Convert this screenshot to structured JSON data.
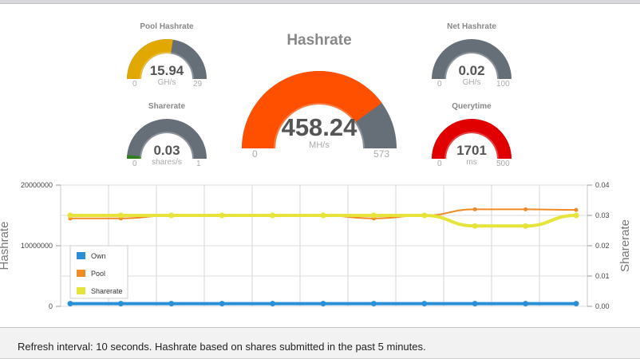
{
  "gauges": {
    "pool_hashrate": {
      "title": "Pool Hashrate",
      "value": "15.94",
      "unit": "GH/s",
      "min": "0",
      "max": "29",
      "fraction": 0.55,
      "color": "#e0a800"
    },
    "sharerate": {
      "title": "Sharerate",
      "value": "0.03",
      "unit": "shares/s",
      "min": "0",
      "max": "1",
      "fraction": 0.03,
      "color": "#2e7d1f"
    },
    "hashrate": {
      "title": "Hashrate",
      "value": "458.24",
      "unit": "MH/s",
      "min": "0",
      "max": "573",
      "fraction": 0.8,
      "color": "#ff5000"
    },
    "net_hashrate": {
      "title": "Net Hashrate",
      "value": "0.02",
      "unit": "GH/s",
      "min": "0",
      "max": "100",
      "fraction": 0.0002,
      "color": "#e0a800"
    },
    "querytime": {
      "title": "Querytime",
      "value": "1701",
      "unit": "ms",
      "min": "0",
      "max": "500",
      "fraction": 1.0,
      "color": "#e00000"
    }
  },
  "gauge_track_color": "#666e78",
  "chart_data": {
    "type": "line",
    "ylabel": "Hashrate",
    "y2label": "Sharerate",
    "ylim": [
      0,
      20000000
    ],
    "y2lim": [
      0,
      0.04
    ],
    "yticks": [
      "0",
      "10000000",
      "20000000"
    ],
    "y2ticks": [
      "0.00",
      "0.01",
      "0.02",
      "0.03",
      "0.04"
    ],
    "x": [
      1,
      2,
      3,
      4,
      5,
      6,
      7,
      8,
      9,
      10,
      11
    ],
    "series": [
      {
        "name": "Own",
        "axis": "left",
        "color": "#2b8fd8",
        "values": [
          450000,
          450000,
          450000,
          450000,
          450000,
          450000,
          450000,
          450000,
          450000,
          450000,
          450000
        ]
      },
      {
        "name": "Pool",
        "axis": "left",
        "color": "#f08a24",
        "values": [
          14500000,
          14500000,
          15000000,
          15000000,
          15000000,
          15000000,
          14500000,
          15000000,
          16000000,
          16000000,
          15900000
        ]
      },
      {
        "name": "Sharerate",
        "axis": "right",
        "color": "#e6e43a",
        "values": [
          0.03,
          0.03,
          0.03,
          0.03,
          0.03,
          0.03,
          0.03,
          0.03,
          0.0265,
          0.0265,
          0.03
        ]
      }
    ],
    "grid": true,
    "legend_position": "bottom-left"
  },
  "footer": {
    "text": "Refresh interval: 10 seconds. Hashrate based on shares submitted in the past 5 minutes."
  }
}
